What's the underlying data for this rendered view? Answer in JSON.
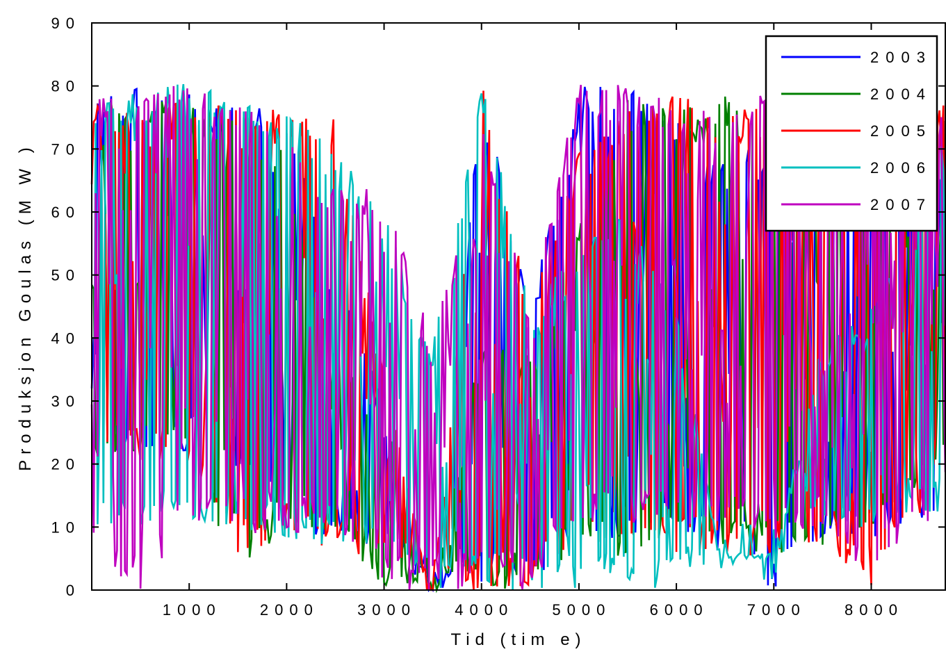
{
  "chart_data": {
    "type": "line",
    "xlabel": "Tid (tim e)",
    "ylabel": "Produksjon Goulas (M W )",
    "xlim": [
      0,
      8760
    ],
    "ylim": [
      0,
      90
    ],
    "x_ticks": [
      1000,
      2000,
      3000,
      4000,
      5000,
      6000,
      7000,
      8000
    ],
    "y_ticks": [
      0,
      10,
      20,
      30,
      40,
      50,
      60,
      70,
      80,
      90
    ],
    "x_tick_labels": [
      "1000",
      "2000",
      "3000",
      "4000",
      "5000",
      "6000",
      "7000",
      "8000"
    ],
    "y_tick_labels": [
      "0",
      "10",
      "20",
      "30",
      "40",
      "50",
      "60",
      "70",
      "80",
      "90"
    ],
    "legend_position": "top-right",
    "x_sampling_hours": 20,
    "series": [
      {
        "name": "2003",
        "color": "#0000ff",
        "envelope": {
          "x": [
            0,
            500,
            1000,
            1500,
            2000,
            2500,
            3000,
            3500,
            4000,
            4500,
            5000,
            5500,
            6000,
            6500,
            7000,
            7500,
            8000,
            8760
          ],
          "upper": [
            78,
            80,
            79,
            78,
            76,
            50,
            30,
            0,
            80,
            45,
            80,
            82,
            75,
            68,
            72,
            75,
            74,
            70
          ],
          "lower": [
            20,
            22,
            22,
            18,
            10,
            8,
            6,
            0,
            0,
            0,
            8,
            8,
            8,
            6,
            0,
            8,
            8,
            12
          ]
        }
      },
      {
        "name": "2004",
        "color": "#008000",
        "envelope": {
          "x": [
            0,
            500,
            1000,
            1500,
            2000,
            2500,
            3000,
            3500,
            4000,
            4500,
            5000,
            5500,
            6000,
            6500,
            7000,
            7500,
            8000,
            8760
          ],
          "upper": [
            78,
            78,
            77,
            76,
            70,
            38,
            30,
            0,
            40,
            38,
            60,
            78,
            76,
            79,
            78,
            77,
            76,
            78
          ],
          "lower": [
            20,
            22,
            22,
            0,
            10,
            8,
            0,
            0,
            0,
            0,
            5,
            5,
            8,
            6,
            6,
            5,
            8,
            20
          ]
        }
      },
      {
        "name": "2005",
        "color": "#ff0000",
        "envelope": {
          "x": [
            0,
            500,
            1000,
            1500,
            2000,
            2500,
            3000,
            3500,
            4000,
            4500,
            5000,
            5500,
            6000,
            6500,
            7000,
            7500,
            8000,
            8760
          ],
          "upper": [
            78,
            78,
            77,
            77,
            76,
            76,
            35,
            0,
            81,
            45,
            70,
            76,
            79,
            76,
            78,
            70,
            75,
            78
          ],
          "lower": [
            18,
            20,
            20,
            6,
            8,
            6,
            5,
            0,
            0,
            0,
            8,
            8,
            6,
            6,
            5,
            8,
            0,
            18
          ]
        }
      },
      {
        "name": "2006",
        "color": "#00bfbf",
        "envelope": {
          "x": [
            0,
            500,
            1000,
            1500,
            2000,
            2500,
            3000,
            3500,
            4000,
            4500,
            5000,
            5500,
            6000,
            6500,
            7000,
            7500,
            8000,
            8760
          ],
          "upper": [
            78,
            79,
            81,
            78,
            76,
            70,
            60,
            40,
            81,
            45,
            55,
            60,
            45,
            6,
            6,
            40,
            45,
            72
          ],
          "lower": [
            9,
            10,
            10,
            10,
            8,
            7,
            5,
            0,
            0,
            0,
            0,
            0,
            0,
            5,
            5,
            10,
            10,
            12
          ]
        }
      },
      {
        "name": "2007",
        "color": "#bf00bf",
        "envelope": {
          "x": [
            0,
            500,
            1000,
            1500,
            2000,
            2500,
            3000,
            3500,
            4000,
            4500,
            5000,
            5500,
            6000,
            6500,
            7000,
            7500,
            8000,
            8760
          ],
          "upper": [
            79,
            80,
            80,
            78,
            72,
            65,
            63,
            40,
            75,
            45,
            81,
            80,
            78,
            76,
            81,
            80,
            79,
            76
          ],
          "lower": [
            4,
            0,
            10,
            9,
            8,
            8,
            0,
            0,
            0,
            0,
            10,
            10,
            10,
            10,
            8,
            10,
            2,
            13
          ]
        }
      }
    ]
  }
}
